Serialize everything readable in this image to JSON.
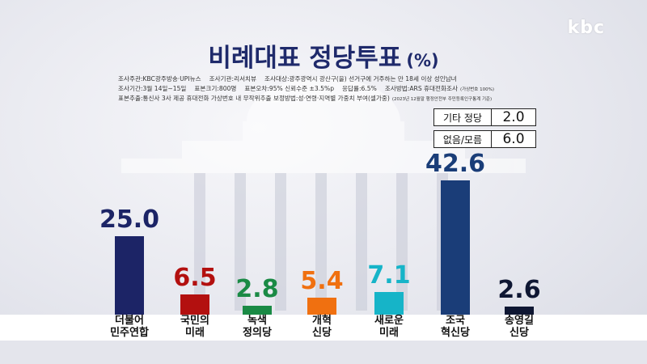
{
  "logo": "kbc",
  "title": "비례대표 정당투표",
  "title_unit": "(%)",
  "meta": {
    "line1": [
      "조사주관:KBC광주방송·UPI뉴스",
      "조사기관:리서치뷰",
      "조사대상:광주광역시 광산구(을) 선거구에 거주하는 만 18세 이상 성인남녀"
    ],
    "line2": [
      "조사기간:3월 14일~15일",
      "표본크기:800명",
      "표본오차:95% 신뢰수준 ±3.5%p",
      "응답률:6.5%",
      "조사방법:ARS 휴대전화조사"
    ],
    "line2_small": "(가상번호 100%)",
    "line3": "표본추출:통신사 3사 제공 휴대전화 가상번호 내 무작위추출   보정방법:성·연령·지역별 가중치 부여(셀가중)",
    "line3_small": "(2023년 12월말 행정안전부 주민등록인구통계 기준)"
  },
  "others": [
    {
      "label": "기타 정당",
      "value": "2.0"
    },
    {
      "label": "없음/모름",
      "value": "6.0"
    }
  ],
  "chart_data": {
    "type": "bar",
    "title": "비례대표 정당투표",
    "unit": "%",
    "categories": [
      "더불어\n민주연합",
      "국민의\n미래",
      "녹색\n정의당",
      "개혁\n신당",
      "새로운\n미래",
      "조국\n혁신당",
      "송영길\n신당"
    ],
    "values": [
      25.0,
      6.5,
      2.8,
      5.4,
      7.1,
      42.6,
      2.6
    ],
    "value_labels": [
      "25.0",
      "6.5",
      "2.8",
      "5.4",
      "7.1",
      "42.6",
      "2.6"
    ],
    "colors": [
      "#1c2466",
      "#b3100f",
      "#1a8a45",
      "#f07010",
      "#16b4c8",
      "#1a3d78",
      "#0f1733"
    ],
    "ylim": [
      0,
      42.6
    ],
    "legend": "none",
    "grid": false
  }
}
